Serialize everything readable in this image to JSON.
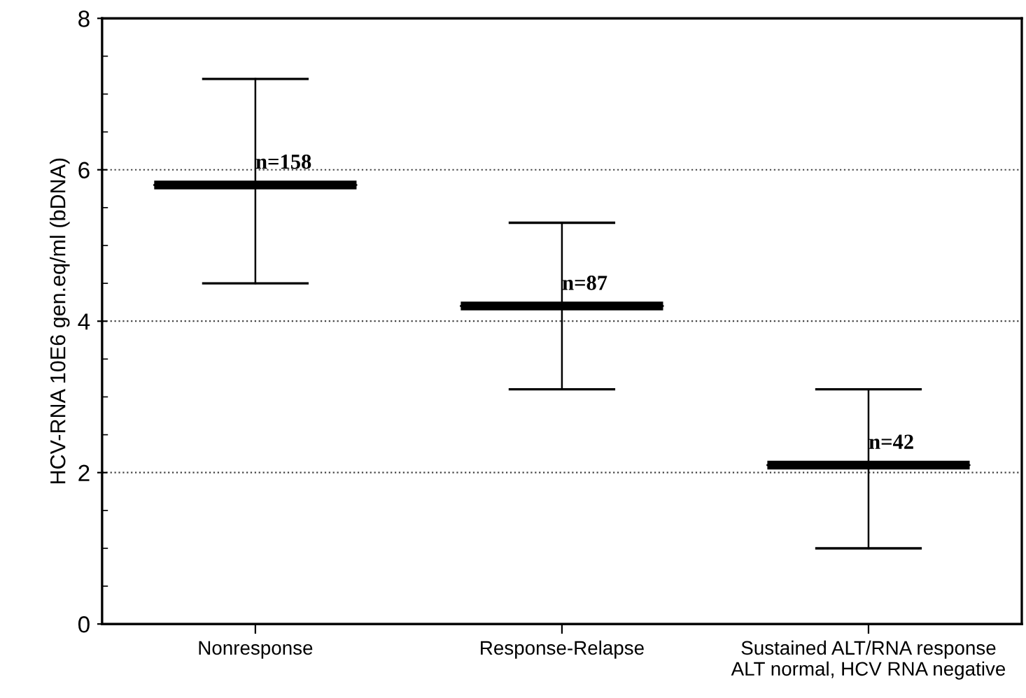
{
  "chart_data": {
    "type": "box",
    "ylabel": "HCV-RNA 10E6 gen.eq/ml (bDNA)",
    "categories": [
      "Nonresponse",
      "Response-Relapse",
      "Sustained ALT/RNA response\nALT normal, HCV RNA negative"
    ],
    "boxes": [
      {
        "low": 4.5,
        "q1": 5.8,
        "median": 5.8,
        "q3": 5.8,
        "high": 7.2
      },
      {
        "low": 3.1,
        "q1": 4.2,
        "median": 4.2,
        "q3": 4.2,
        "high": 5.3
      },
      {
        "low": 1.0,
        "q1": 2.1,
        "median": 2.1,
        "q3": 2.1,
        "high": 3.1
      }
    ],
    "color": "#000000",
    "ylim": [
      0,
      8
    ],
    "yticks": [
      0,
      2,
      4,
      6,
      8
    ],
    "grid": "y",
    "annotations": [
      {
        "text": "n=158",
        "x": "Nonresponse",
        "y": 5.8
      },
      {
        "text": "n=87",
        "x": "Response-Relapse",
        "y": 4.2
      },
      {
        "text": "n=42",
        "x": "Sustained ALT/RNA response\nALT normal, HCV RNA negative",
        "y": 2.1
      }
    ]
  }
}
